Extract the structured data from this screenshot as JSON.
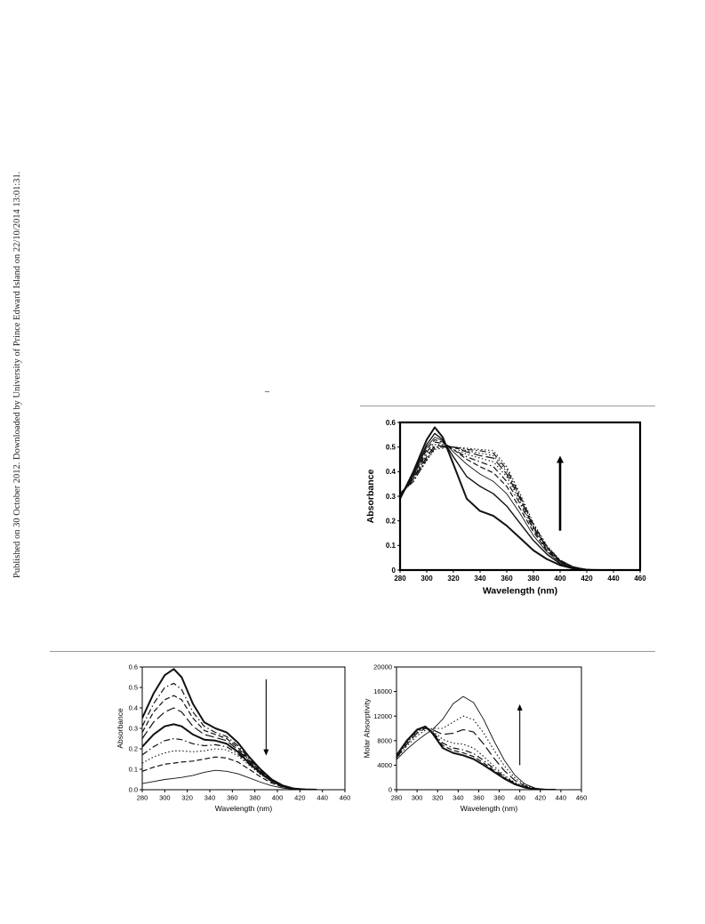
{
  "margin_note": "Published on 30 October 2012. Downloaded by University of Prince Edward Island on 22/10/2014 13:01:31.",
  "chart_data": [
    {
      "id": "fig-a",
      "type": "line",
      "xlabel": "Wavelength (nm)",
      "ylabel": "Absorbance",
      "xlim": [
        280,
        460
      ],
      "ylim": [
        0,
        0.6
      ],
      "xticks": [
        280,
        300,
        320,
        340,
        360,
        380,
        400,
        420,
        440,
        460
      ],
      "yticks": [
        0,
        0.1,
        0.2,
        0.3,
        0.4,
        0.5,
        0.6
      ],
      "ytick_labels": [
        "0",
        "0.1",
        "0.2",
        "0.3",
        "0.4",
        "0.5",
        "0.6"
      ],
      "bold_axes": true,
      "arrow": {
        "direction": "up",
        "x": 400,
        "y_from": 0.16,
        "y_to": 0.45
      },
      "x": [
        280,
        290,
        300,
        306,
        312,
        320,
        330,
        340,
        350,
        360,
        370,
        380,
        390,
        400,
        410,
        420,
        430
      ],
      "series": [
        {
          "style": "solid-bold",
          "values": [
            0.29,
            0.4,
            0.53,
            0.58,
            0.54,
            0.43,
            0.29,
            0.24,
            0.22,
            0.18,
            0.13,
            0.08,
            0.045,
            0.02,
            0.006,
            0.001,
            0
          ]
        },
        {
          "style": "solid",
          "values": [
            0.29,
            0.39,
            0.51,
            0.555,
            0.53,
            0.46,
            0.38,
            0.34,
            0.31,
            0.26,
            0.19,
            0.12,
            0.065,
            0.025,
            0.008,
            0.001,
            0
          ]
        },
        {
          "style": "solid-thin",
          "values": [
            0.3,
            0.38,
            0.5,
            0.54,
            0.525,
            0.48,
            0.43,
            0.39,
            0.36,
            0.31,
            0.23,
            0.14,
            0.075,
            0.03,
            0.01,
            0.002,
            0
          ]
        },
        {
          "style": "dash",
          "values": [
            0.3,
            0.38,
            0.49,
            0.53,
            0.52,
            0.49,
            0.45,
            0.42,
            0.395,
            0.34,
            0.25,
            0.155,
            0.08,
            0.033,
            0.011,
            0.002,
            0
          ]
        },
        {
          "style": "dashdot",
          "values": [
            0.3,
            0.37,
            0.48,
            0.52,
            0.515,
            0.49,
            0.46,
            0.44,
            0.42,
            0.36,
            0.27,
            0.165,
            0.085,
            0.035,
            0.011,
            0.002,
            0
          ]
        },
        {
          "style": "dot",
          "values": [
            0.31,
            0.37,
            0.47,
            0.51,
            0.51,
            0.5,
            0.47,
            0.455,
            0.44,
            0.38,
            0.28,
            0.17,
            0.09,
            0.037,
            0.012,
            0.002,
            0
          ]
        },
        {
          "style": "longdash",
          "values": [
            0.31,
            0.37,
            0.46,
            0.505,
            0.505,
            0.5,
            0.48,
            0.465,
            0.455,
            0.39,
            0.29,
            0.175,
            0.092,
            0.038,
            0.012,
            0.002,
            0
          ]
        },
        {
          "style": "dot",
          "values": [
            0.31,
            0.36,
            0.455,
            0.5,
            0.5,
            0.5,
            0.485,
            0.475,
            0.465,
            0.4,
            0.295,
            0.18,
            0.095,
            0.039,
            0.012,
            0.002,
            0
          ]
        },
        {
          "style": "dashdot",
          "values": [
            0.31,
            0.36,
            0.45,
            0.495,
            0.5,
            0.5,
            0.49,
            0.485,
            0.475,
            0.41,
            0.3,
            0.185,
            0.097,
            0.04,
            0.013,
            0.002,
            0
          ]
        },
        {
          "style": "dot",
          "values": [
            0.31,
            0.36,
            0.445,
            0.49,
            0.495,
            0.5,
            0.495,
            0.49,
            0.485,
            0.42,
            0.31,
            0.19,
            0.1,
            0.041,
            0.013,
            0.002,
            0
          ]
        }
      ]
    },
    {
      "id": "fig-b",
      "type": "line",
      "xlabel": "Wavelength (nm)",
      "ylabel": "Absorbance",
      "xlim": [
        280,
        460
      ],
      "ylim": [
        0,
        0.6
      ],
      "xticks": [
        280,
        300,
        320,
        340,
        360,
        380,
        400,
        420,
        440,
        460
      ],
      "yticks": [
        0,
        0.1,
        0.2,
        0.3,
        0.4,
        0.5,
        0.6
      ],
      "ytick_labels": [
        "0.0",
        "0.1",
        "0.2",
        "0.3",
        "0.4",
        "0.5",
        "0.6"
      ],
      "bold_axes": false,
      "arrow": {
        "direction": "down",
        "x": 390,
        "y_from": 0.54,
        "y_to": 0.18
      },
      "x": [
        280,
        290,
        300,
        308,
        315,
        325,
        335,
        345,
        355,
        365,
        375,
        385,
        395,
        405,
        415,
        425,
        435
      ],
      "series": [
        {
          "style": "solid-bold",
          "values": [
            0.35,
            0.47,
            0.56,
            0.59,
            0.55,
            0.42,
            0.33,
            0.3,
            0.28,
            0.23,
            0.16,
            0.1,
            0.05,
            0.02,
            0.005,
            0.001,
            0
          ]
        },
        {
          "style": "dashdot",
          "values": [
            0.31,
            0.42,
            0.5,
            0.52,
            0.49,
            0.38,
            0.31,
            0.28,
            0.26,
            0.215,
            0.15,
            0.095,
            0.048,
            0.019,
            0.005,
            0.001,
            0
          ]
        },
        {
          "style": "dash",
          "values": [
            0.28,
            0.38,
            0.44,
            0.46,
            0.44,
            0.35,
            0.29,
            0.27,
            0.25,
            0.205,
            0.145,
            0.09,
            0.046,
            0.018,
            0.005,
            0.001,
            0
          ]
        },
        {
          "style": "longdash",
          "values": [
            0.25,
            0.33,
            0.38,
            0.4,
            0.38,
            0.31,
            0.27,
            0.255,
            0.24,
            0.195,
            0.14,
            0.087,
            0.044,
            0.017,
            0.005,
            0.001,
            0
          ]
        },
        {
          "style": "solid-bold",
          "values": [
            0.21,
            0.27,
            0.31,
            0.32,
            0.31,
            0.27,
            0.245,
            0.24,
            0.225,
            0.185,
            0.13,
            0.082,
            0.042,
            0.016,
            0.004,
            0.001,
            0
          ]
        },
        {
          "style": "dashdot",
          "values": [
            0.17,
            0.21,
            0.24,
            0.25,
            0.245,
            0.225,
            0.215,
            0.22,
            0.21,
            0.175,
            0.125,
            0.078,
            0.04,
            0.015,
            0.004,
            0.001,
            0
          ]
        },
        {
          "style": "dot",
          "values": [
            0.13,
            0.16,
            0.18,
            0.19,
            0.19,
            0.185,
            0.19,
            0.2,
            0.195,
            0.165,
            0.12,
            0.075,
            0.038,
            0.014,
            0.004,
            0.001,
            0
          ]
        },
        {
          "style": "dash",
          "values": [
            0.09,
            0.11,
            0.125,
            0.13,
            0.135,
            0.14,
            0.15,
            0.16,
            0.155,
            0.135,
            0.1,
            0.063,
            0.032,
            0.012,
            0.003,
            0.001,
            0
          ]
        },
        {
          "style": "solid-thin",
          "values": [
            0.03,
            0.04,
            0.05,
            0.055,
            0.06,
            0.07,
            0.085,
            0.095,
            0.09,
            0.078,
            0.058,
            0.037,
            0.019,
            0.008,
            0.002,
            0,
            0
          ]
        }
      ]
    },
    {
      "id": "fig-c",
      "type": "line",
      "xlabel": "Wavelength (nm)",
      "ylabel": "Molar Absorptivity",
      "xlim": [
        280,
        460
      ],
      "ylim": [
        0,
        20000
      ],
      "xticks": [
        280,
        300,
        320,
        340,
        360,
        380,
        400,
        420,
        440,
        460
      ],
      "yticks": [
        0,
        4000,
        8000,
        12000,
        16000,
        20000
      ],
      "ytick_labels": [
        "0",
        "4000",
        "8000",
        "12000",
        "16000",
        "20000"
      ],
      "bold_axes": false,
      "arrow": {
        "direction": "up",
        "x": 400,
        "y_from": 4000,
        "y_to": 13500
      },
      "x": [
        280,
        290,
        300,
        308,
        315,
        325,
        335,
        345,
        355,
        365,
        375,
        385,
        395,
        405,
        415,
        425,
        435
      ],
      "series": [
        {
          "style": "solid-bold",
          "values": [
            5600,
            8000,
            9800,
            10300,
            9200,
            6800,
            6000,
            5600,
            5000,
            4000,
            2900,
            1800,
            900,
            350,
            100,
            20,
            0
          ]
        },
        {
          "style": "dash",
          "values": [
            5500,
            7900,
            9700,
            10250,
            9300,
            7200,
            6400,
            6000,
            5400,
            4350,
            3100,
            1950,
            980,
            380,
            110,
            20,
            0
          ]
        },
        {
          "style": "dashdot",
          "values": [
            5400,
            7800,
            9600,
            10200,
            9400,
            7600,
            6800,
            6500,
            5900,
            4750,
            3400,
            2100,
            1060,
            410,
            120,
            25,
            0
          ]
        },
        {
          "style": "dot",
          "values": [
            5300,
            7600,
            9400,
            10100,
            9600,
            8200,
            7600,
            7400,
            6800,
            5400,
            3800,
            2350,
            1180,
            460,
            130,
            25,
            0
          ]
        },
        {
          "style": "longdash",
          "values": [
            5200,
            7400,
            9200,
            10000,
            9800,
            9000,
            9200,
            9800,
            9400,
            7400,
            5100,
            3100,
            1550,
            600,
            170,
            30,
            0
          ]
        },
        {
          "style": "dot",
          "values": [
            5100,
            7100,
            8800,
            9700,
            10000,
            10000,
            11000,
            12000,
            11400,
            9200,
            6400,
            3900,
            1950,
            760,
            210,
            40,
            0
          ]
        },
        {
          "style": "solid-thin",
          "values": [
            4900,
            6600,
            8000,
            9000,
            9800,
            11500,
            14000,
            15200,
            14200,
            11400,
            7900,
            4800,
            2400,
            930,
            260,
            50,
            0
          ]
        }
      ]
    }
  ]
}
